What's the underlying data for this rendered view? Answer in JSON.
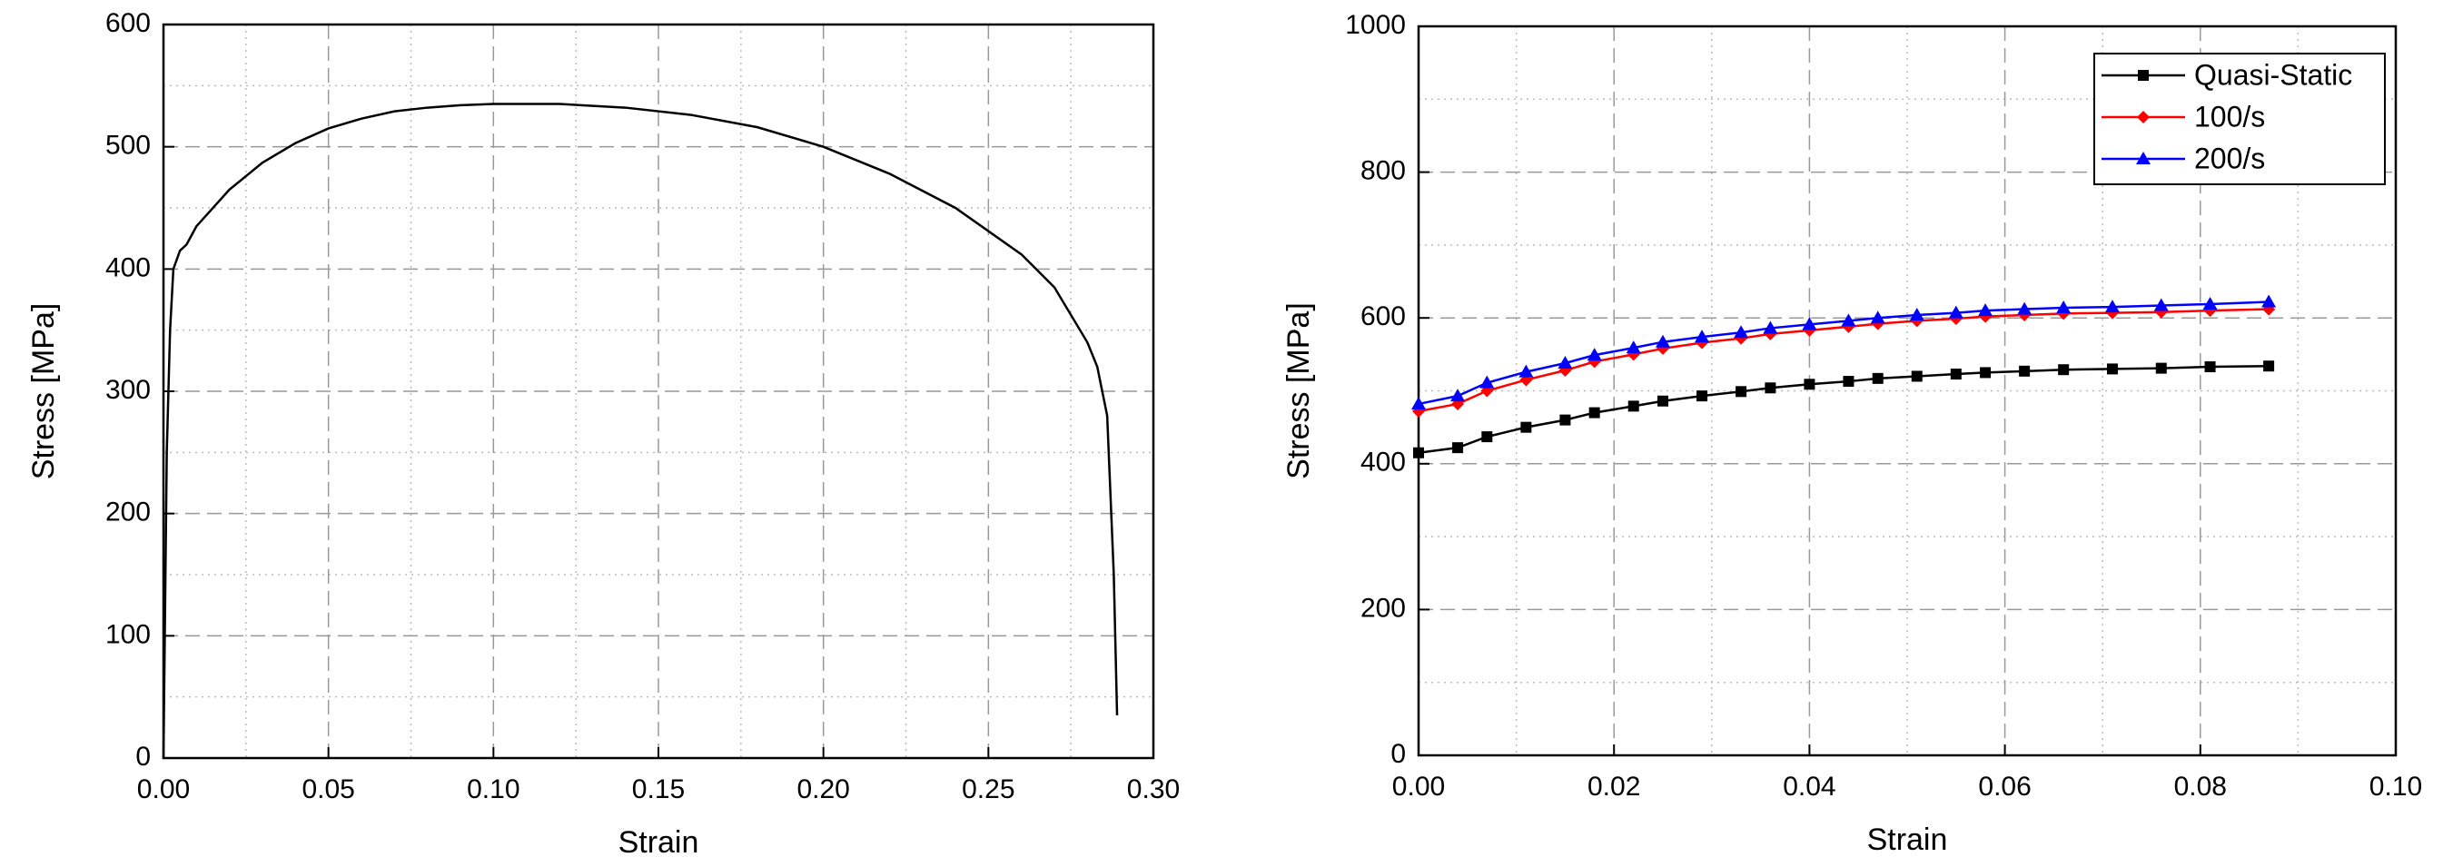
{
  "chart_data": [
    {
      "type": "line",
      "xlabel": "Strain",
      "ylabel": "Stress [MPa]",
      "xlim": [
        0,
        0.3
      ],
      "ylim": [
        0,
        600
      ],
      "xticks": [
        {
          "value": 0,
          "label": "0.00"
        },
        {
          "value": 0.05,
          "label": "0.05"
        },
        {
          "value": 0.1,
          "label": "0.10"
        },
        {
          "value": 0.15,
          "label": "0.15"
        },
        {
          "value": 0.2,
          "label": "0.20"
        },
        {
          "value": 0.25,
          "label": "0.25"
        },
        {
          "value": 0.3,
          "label": "0.30"
        }
      ],
      "yticks": [
        0,
        100,
        200,
        300,
        400,
        500,
        600
      ],
      "xminor": [
        0.025,
        0.075,
        0.125,
        0.175,
        0.225,
        0.275
      ],
      "yminor": [
        50,
        150,
        250,
        350,
        450,
        550
      ],
      "grid": true,
      "x": [
        0,
        0.001,
        0.002,
        0.003,
        0.005,
        0.007,
        0.01,
        0.02,
        0.03,
        0.04,
        0.05,
        0.06,
        0.07,
        0.08,
        0.09,
        0.1,
        0.12,
        0.14,
        0.16,
        0.18,
        0.2,
        0.22,
        0.24,
        0.26,
        0.27,
        0.28,
        0.283,
        0.286,
        0.288,
        0.289
      ],
      "series": [
        {
          "color": "#000000",
          "values": [
            0,
            250,
            350,
            400,
            415,
            420,
            435,
            465,
            487,
            503,
            515,
            523,
            529,
            532,
            534,
            535,
            535,
            532,
            526,
            516,
            500,
            478,
            450,
            412,
            385,
            340,
            320,
            280,
            150,
            35
          ]
        }
      ]
    },
    {
      "type": "line",
      "xlabel": "Strain",
      "ylabel": "Stress [MPa]",
      "xlim": [
        0,
        0.1
      ],
      "ylim": [
        0,
        1000
      ],
      "xticks": [
        {
          "value": 0,
          "label": "0.00"
        },
        {
          "value": 0.02,
          "label": "0.02"
        },
        {
          "value": 0.04,
          "label": "0.04"
        },
        {
          "value": 0.06,
          "label": "0.06"
        },
        {
          "value": 0.08,
          "label": "0.08"
        },
        {
          "value": 0.1,
          "label": "0.10"
        }
      ],
      "yticks": [
        0,
        200,
        400,
        600,
        800,
        1000
      ],
      "xminor": [
        0.01,
        0.03,
        0.05,
        0.07,
        0.09
      ],
      "yminor": [
        100,
        300,
        500,
        700,
        900
      ],
      "grid": true,
      "legend": "upper right",
      "x": [
        0,
        0.004,
        0.007,
        0.011,
        0.015,
        0.018,
        0.022,
        0.025,
        0.029,
        0.033,
        0.036,
        0.04,
        0.044,
        0.047,
        0.051,
        0.055,
        0.058,
        0.062,
        0.066,
        0.071,
        0.076,
        0.081,
        0.087
      ],
      "series": [
        {
          "name": "Quasi-Static",
          "color": "#000000",
          "marker": "square",
          "values": [
            415,
            422,
            437,
            450,
            460,
            470,
            479,
            486,
            493,
            499,
            504,
            509,
            513,
            517,
            520,
            523,
            525,
            527,
            529,
            530,
            531,
            533,
            534
          ]
        },
        {
          "name": "100/s",
          "color": "#ff0000",
          "marker": "diamond",
          "values": [
            472,
            482,
            500,
            515,
            528,
            540,
            550,
            558,
            566,
            572,
            578,
            583,
            588,
            592,
            596,
            599,
            602,
            604,
            606,
            607,
            608,
            610,
            612
          ]
        },
        {
          "name": "200/s",
          "color": "#0000ff",
          "marker": "triangle",
          "values": [
            482,
            493,
            511,
            526,
            538,
            549,
            559,
            567,
            574,
            580,
            586,
            591,
            596,
            600,
            604,
            607,
            610,
            612,
            614,
            615,
            617,
            619,
            622
          ]
        }
      ]
    }
  ]
}
